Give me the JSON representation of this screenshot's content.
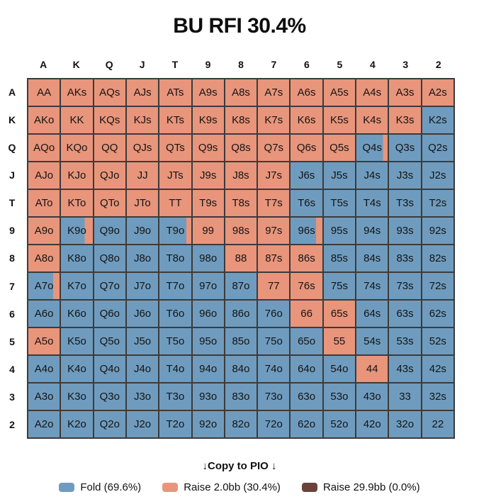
{
  "chart_data": {
    "type": "heatmap",
    "title": "BU RFI 30.4%",
    "x_categories": [
      "A",
      "K",
      "Q",
      "J",
      "T",
      "9",
      "8",
      "7",
      "6",
      "5",
      "4",
      "3",
      "2"
    ],
    "y_categories": [
      "A",
      "K",
      "Q",
      "J",
      "T",
      "9",
      "8",
      "7",
      "6",
      "5",
      "4",
      "3",
      "2"
    ],
    "value_meaning": "raise_fraction of each cell (0 = full Fold color, 1 = full Raise 2.0bb color, intermediate = right-side raise strip)",
    "rows": [
      {
        "header": "A",
        "cells": [
          [
            "AA",
            1
          ],
          [
            "AKs",
            1
          ],
          [
            "AQs",
            1
          ],
          [
            "AJs",
            1
          ],
          [
            "ATs",
            1
          ],
          [
            "A9s",
            1
          ],
          [
            "A8s",
            1
          ],
          [
            "A7s",
            1
          ],
          [
            "A6s",
            1
          ],
          [
            "A5s",
            1
          ],
          [
            "A4s",
            1
          ],
          [
            "A3s",
            1
          ],
          [
            "A2s",
            1
          ]
        ]
      },
      {
        "header": "K",
        "cells": [
          [
            "AKo",
            1
          ],
          [
            "KK",
            1
          ],
          [
            "KQs",
            1
          ],
          [
            "KJs",
            1
          ],
          [
            "KTs",
            1
          ],
          [
            "K9s",
            1
          ],
          [
            "K8s",
            1
          ],
          [
            "K7s",
            1
          ],
          [
            "K6s",
            1
          ],
          [
            "K5s",
            1
          ],
          [
            "K4s",
            1
          ],
          [
            "K3s",
            1
          ],
          [
            "K2s",
            0
          ]
        ]
      },
      {
        "header": "Q",
        "cells": [
          [
            "AQo",
            1
          ],
          [
            "KQo",
            1
          ],
          [
            "QQ",
            1
          ],
          [
            "QJs",
            1
          ],
          [
            "QTs",
            1
          ],
          [
            "Q9s",
            1
          ],
          [
            "Q8s",
            1
          ],
          [
            "Q7s",
            1
          ],
          [
            "Q6s",
            1
          ],
          [
            "Q5s",
            1
          ],
          [
            "Q4s",
            0.15
          ],
          [
            "Q3s",
            0
          ],
          [
            "Q2s",
            0
          ]
        ]
      },
      {
        "header": "J",
        "cells": [
          [
            "AJo",
            1
          ],
          [
            "KJo",
            1
          ],
          [
            "QJo",
            1
          ],
          [
            "JJ",
            1
          ],
          [
            "JTs",
            1
          ],
          [
            "J9s",
            1
          ],
          [
            "J8s",
            1
          ],
          [
            "J7s",
            1
          ],
          [
            "J6s",
            0
          ],
          [
            "J5s",
            0
          ],
          [
            "J4s",
            0
          ],
          [
            "J3s",
            0
          ],
          [
            "J2s",
            0
          ]
        ]
      },
      {
        "header": "T",
        "cells": [
          [
            "ATo",
            1
          ],
          [
            "KTo",
            1
          ],
          [
            "QTo",
            1
          ],
          [
            "JTo",
            1
          ],
          [
            "TT",
            1
          ],
          [
            "T9s",
            1
          ],
          [
            "T8s",
            1
          ],
          [
            "T7s",
            1
          ],
          [
            "T6s",
            0
          ],
          [
            "T5s",
            0
          ],
          [
            "T4s",
            0
          ],
          [
            "T3s",
            0
          ],
          [
            "T2s",
            0
          ]
        ]
      },
      {
        "header": "9",
        "cells": [
          [
            "A9o",
            1
          ],
          [
            "K9o",
            0.25
          ],
          [
            "Q9o",
            0
          ],
          [
            "J9o",
            0
          ],
          [
            "T9o",
            0.15
          ],
          [
            "99",
            1
          ],
          [
            "98s",
            1
          ],
          [
            "97s",
            1
          ],
          [
            "96s",
            0.2
          ],
          [
            "95s",
            0
          ],
          [
            "94s",
            0
          ],
          [
            "93s",
            0
          ],
          [
            "92s",
            0
          ]
        ]
      },
      {
        "header": "8",
        "cells": [
          [
            "A8o",
            1
          ],
          [
            "K8o",
            0
          ],
          [
            "Q8o",
            0
          ],
          [
            "J8o",
            0
          ],
          [
            "T8o",
            0
          ],
          [
            "98o",
            0
          ],
          [
            "88",
            1
          ],
          [
            "87s",
            1
          ],
          [
            "86s",
            1
          ],
          [
            "85s",
            0
          ],
          [
            "84s",
            0
          ],
          [
            "83s",
            0
          ],
          [
            "82s",
            0
          ]
        ]
      },
      {
        "header": "7",
        "cells": [
          [
            "A7o",
            0.2
          ],
          [
            "K7o",
            0
          ],
          [
            "Q7o",
            0
          ],
          [
            "J7o",
            0
          ],
          [
            "T7o",
            0
          ],
          [
            "97o",
            0
          ],
          [
            "87o",
            0
          ],
          [
            "77",
            1
          ],
          [
            "76s",
            1
          ],
          [
            "75s",
            0
          ],
          [
            "74s",
            0
          ],
          [
            "73s",
            0
          ],
          [
            "72s",
            0
          ]
        ]
      },
      {
        "header": "6",
        "cells": [
          [
            "A6o",
            0
          ],
          [
            "K6o",
            0
          ],
          [
            "Q6o",
            0
          ],
          [
            "J6o",
            0
          ],
          [
            "T6o",
            0
          ],
          [
            "96o",
            0
          ],
          [
            "86o",
            0
          ],
          [
            "76o",
            0
          ],
          [
            "66",
            1
          ],
          [
            "65s",
            1
          ],
          [
            "64s",
            0
          ],
          [
            "63s",
            0
          ],
          [
            "62s",
            0
          ]
        ]
      },
      {
        "header": "5",
        "cells": [
          [
            "A5o",
            1
          ],
          [
            "K5o",
            0
          ],
          [
            "Q5o",
            0
          ],
          [
            "J5o",
            0
          ],
          [
            "T5o",
            0
          ],
          [
            "95o",
            0
          ],
          [
            "85o",
            0
          ],
          [
            "75o",
            0
          ],
          [
            "65o",
            0
          ],
          [
            "55",
            1
          ],
          [
            "54s",
            0
          ],
          [
            "53s",
            0
          ],
          [
            "52s",
            0
          ]
        ]
      },
      {
        "header": "4",
        "cells": [
          [
            "A4o",
            0
          ],
          [
            "K4o",
            0
          ],
          [
            "Q4o",
            0
          ],
          [
            "J4o",
            0
          ],
          [
            "T4o",
            0
          ],
          [
            "94o",
            0
          ],
          [
            "84o",
            0
          ],
          [
            "74o",
            0
          ],
          [
            "64o",
            0
          ],
          [
            "54o",
            0
          ],
          [
            "44",
            1
          ],
          [
            "43s",
            0
          ],
          [
            "42s",
            0
          ]
        ]
      },
      {
        "header": "3",
        "cells": [
          [
            "A3o",
            0
          ],
          [
            "K3o",
            0
          ],
          [
            "Q3o",
            0
          ],
          [
            "J3o",
            0
          ],
          [
            "T3o",
            0
          ],
          [
            "93o",
            0
          ],
          [
            "83o",
            0
          ],
          [
            "73o",
            0
          ],
          [
            "63o",
            0
          ],
          [
            "53o",
            0
          ],
          [
            "43o",
            0
          ],
          [
            "33",
            0
          ],
          [
            "32s",
            0
          ]
        ]
      },
      {
        "header": "2",
        "cells": [
          [
            "A2o",
            0
          ],
          [
            "K2o",
            0
          ],
          [
            "Q2o",
            0
          ],
          [
            "J2o",
            0
          ],
          [
            "T2o",
            0
          ],
          [
            "92o",
            0
          ],
          [
            "82o",
            0
          ],
          [
            "72o",
            0
          ],
          [
            "62o",
            0
          ],
          [
            "52o",
            0
          ],
          [
            "42o",
            0
          ],
          [
            "32o",
            0
          ],
          [
            "22",
            0
          ]
        ]
      }
    ],
    "actions": [
      {
        "name": "Fold",
        "label": "Fold (69.6%)",
        "percent": 69.6,
        "color": "#6F9CBE"
      },
      {
        "name": "Raise 2.0bb",
        "label": "Raise 2.0bb (30.4%)",
        "percent": 30.4,
        "color": "#E8957B"
      },
      {
        "name": "Raise 29.9bb",
        "label": "Raise 29.9bb (0.0%)",
        "percent": 0.0,
        "color": "#6B4239"
      }
    ],
    "legend_position": "bottom"
  },
  "footer": {
    "copy_to_pio": "↓Copy to PIO ↓"
  },
  "colors": {
    "border": "#3B3B3B",
    "background": "#FFFFFF",
    "text": "#111111"
  }
}
